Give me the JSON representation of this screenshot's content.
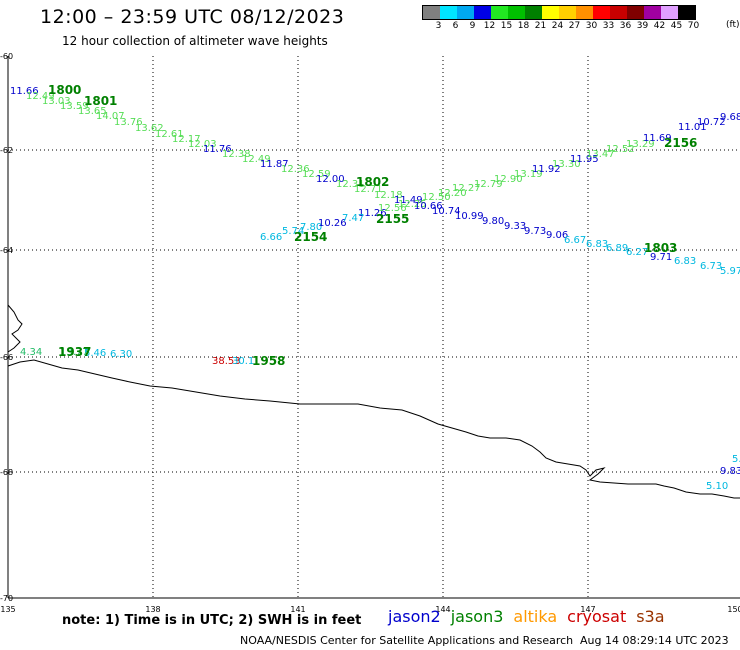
{
  "header": {
    "title": "12:00 – 23:59 UTC 08/12/2023",
    "subtitle": "12 hour collection of altimeter wave heights"
  },
  "color_scale": {
    "unit": "(ft)",
    "entries": [
      {
        "label": "3",
        "color": "#808080"
      },
      {
        "label": "6",
        "color": "#00e5ff"
      },
      {
        "label": "9",
        "color": "#00a8f0"
      },
      {
        "label": "12",
        "color": "#0000e6"
      },
      {
        "label": "15",
        "color": "#22e822"
      },
      {
        "label": "18",
        "color": "#00c000"
      },
      {
        "label": "21",
        "color": "#008000"
      },
      {
        "label": "24",
        "color": "#ffff00"
      },
      {
        "label": "27",
        "color": "#ffd000"
      },
      {
        "label": "30",
        "color": "#ff9000"
      },
      {
        "label": "33",
        "color": "#ff0000"
      },
      {
        "label": "36",
        "color": "#c80000"
      },
      {
        "label": "39",
        "color": "#800000"
      },
      {
        "label": "42",
        "color": "#a000a0"
      },
      {
        "label": "45",
        "color": "#e0a0ff"
      },
      {
        "label": "70",
        "color": "#000000"
      }
    ]
  },
  "axes": {
    "lat_labels": [
      "-60",
      "-62",
      "-64",
      "-66",
      "-68",
      "-70"
    ],
    "lon_labels": [
      "135",
      "138",
      "141",
      "144",
      "147",
      "150"
    ]
  },
  "tracks": [
    {
      "label": "1800",
      "color": "#008000"
    },
    {
      "label": "1801",
      "color": "#008000"
    },
    {
      "label": "1802",
      "color": "#008000"
    },
    {
      "label": "2155",
      "color": "#008000"
    },
    {
      "label": "2156",
      "color": "#008000"
    },
    {
      "label": "1803",
      "color": "#008000"
    },
    {
      "label": "2154",
      "color": "#008000"
    },
    {
      "label": "1937",
      "color": "#008000"
    },
    {
      "label": "1958",
      "color": "#008000"
    }
  ],
  "readings": [
    {
      "text": "11.66",
      "color": "#0000cc"
    },
    {
      "text": "12.49",
      "color": "#55dd55"
    },
    {
      "text": "13.03",
      "color": "#55dd55"
    },
    {
      "text": "13.59",
      "color": "#55dd55"
    },
    {
      "text": "13.65",
      "color": "#55dd55"
    },
    {
      "text": "14.07",
      "color": "#55dd55"
    },
    {
      "text": "13.76",
      "color": "#55dd55"
    },
    {
      "text": "13.62",
      "color": "#55dd55"
    },
    {
      "text": "12.61",
      "color": "#55dd55"
    },
    {
      "text": "12.17",
      "color": "#55dd55"
    },
    {
      "text": "12.03",
      "color": "#55dd55"
    },
    {
      "text": "11.76",
      "color": "#0000cc"
    },
    {
      "text": "12.38",
      "color": "#55dd55"
    },
    {
      "text": "12.49",
      "color": "#55dd55"
    },
    {
      "text": "11.87",
      "color": "#0000cc"
    },
    {
      "text": "12.36",
      "color": "#55dd55"
    },
    {
      "text": "12.59",
      "color": "#55dd55"
    },
    {
      "text": "12.00",
      "color": "#0000cc"
    },
    {
      "text": "12.31",
      "color": "#55dd55"
    },
    {
      "text": "12.71",
      "color": "#55dd55"
    },
    {
      "text": "12.18",
      "color": "#55dd55"
    },
    {
      "text": "11.49",
      "color": "#0000cc"
    },
    {
      "text": "11.26",
      "color": "#0000cc"
    },
    {
      "text": "12.56",
      "color": "#55dd55"
    },
    {
      "text": "12.25",
      "color": "#55dd55"
    },
    {
      "text": "10.66",
      "color": "#0000cc"
    },
    {
      "text": "12.50",
      "color": "#55dd55"
    },
    {
      "text": "12.20",
      "color": "#55dd55"
    },
    {
      "text": "10.74",
      "color": "#0000cc"
    },
    {
      "text": "12.27",
      "color": "#55dd55"
    },
    {
      "text": "10.99",
      "color": "#0000cc"
    },
    {
      "text": "12.79",
      "color": "#55dd55"
    },
    {
      "text": "9.80",
      "color": "#0000cc"
    },
    {
      "text": "12.90",
      "color": "#55dd55"
    },
    {
      "text": "9.33",
      "color": "#0000cc"
    },
    {
      "text": "13.19",
      "color": "#55dd55"
    },
    {
      "text": "9.73",
      "color": "#0000cc"
    },
    {
      "text": "11.92",
      "color": "#0000cc"
    },
    {
      "text": "9.06",
      "color": "#0000cc"
    },
    {
      "text": "13.30",
      "color": "#55dd55"
    },
    {
      "text": "6.67",
      "color": "#00b8e0"
    },
    {
      "text": "11.95",
      "color": "#0000cc"
    },
    {
      "text": "13.47",
      "color": "#55dd55"
    },
    {
      "text": "6.83",
      "color": "#00b8e0"
    },
    {
      "text": "12.52",
      "color": "#55dd55"
    },
    {
      "text": "6.89",
      "color": "#00b8e0"
    },
    {
      "text": "13.29",
      "color": "#55dd55"
    },
    {
      "text": "6.27",
      "color": "#00b8e0"
    },
    {
      "text": "11.69",
      "color": "#0000cc"
    },
    {
      "text": "9.71",
      "color": "#0000cc"
    },
    {
      "text": "11.01",
      "color": "#0000cc"
    },
    {
      "text": "6.83",
      "color": "#00b8e0"
    },
    {
      "text": "10.72",
      "color": "#0000cc"
    },
    {
      "text": "6.73",
      "color": "#00b8e0"
    },
    {
      "text": "9.68",
      "color": "#0000cc"
    },
    {
      "text": "5.97",
      "color": "#00b8e0"
    },
    {
      "text": "6.66",
      "color": "#00b8e0"
    },
    {
      "text": "5.74",
      "color": "#00b8e0"
    },
    {
      "text": "7.80",
      "color": "#00b8e0"
    },
    {
      "text": "10.26",
      "color": "#0000cc"
    },
    {
      "text": "7.47",
      "color": "#00b8e0"
    },
    {
      "text": "4.34",
      "color": "#22bb66"
    },
    {
      "text": "13.77",
      "color": "#22bb66"
    },
    {
      "text": "5.46",
      "color": "#00b8e0"
    },
    {
      "text": "6.30",
      "color": "#00b8e0"
    },
    {
      "text": "38.53",
      "color": "#cc0000"
    },
    {
      "text": "30.1",
      "color": "#00b8e0"
    },
    {
      "text": "5.10",
      "color": "#00b8e0"
    },
    {
      "text": "9.83",
      "color": "#0000cc"
    },
    {
      "text": "5.",
      "color": "#00b8e0"
    }
  ],
  "legend": {
    "items": [
      {
        "label": "jason2",
        "color": "#0000cc"
      },
      {
        "label": "jason3",
        "color": "#008000"
      },
      {
        "label": "altika",
        "color": "#ff9900"
      },
      {
        "label": "cryosat",
        "color": "#cc0000"
      },
      {
        "label": "s3a",
        "color": "#993300"
      }
    ]
  },
  "footer": {
    "note": "note: 1) Time is in UTC; 2) SWH is in feet",
    "credit": "NOAA/NESDIS Center for Satellite Applications and Research",
    "timestamp": "Aug 14 08:29:14 UTC 2023"
  }
}
